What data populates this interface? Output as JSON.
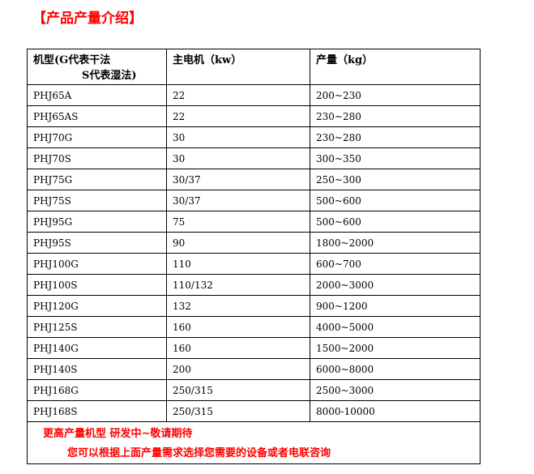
{
  "title": "【产品产量介绍】",
  "headers": {
    "model": "机型(G代表干法",
    "model_sub": "S代表湿法)",
    "power": "主电机（kw）",
    "output": "产量（kg）"
  },
  "rows": [
    [
      "PHJ65A",
      "22",
      "200~230"
    ],
    [
      "PHJ65AS",
      "22",
      "230~280"
    ],
    [
      "PHJ70G",
      "30",
      "230~280"
    ],
    [
      "PHJ70S",
      "30",
      "300~350"
    ],
    [
      "PHJ75G",
      "30/37",
      "250~300"
    ],
    [
      "PHJ75S",
      "30/37",
      "500~600"
    ],
    [
      "PHJ95G",
      "75",
      "500~600"
    ],
    [
      "PHJ95S",
      "90",
      "1800~2000"
    ],
    [
      "PHJ100G",
      "110",
      "600~700"
    ],
    [
      "PHJ100S",
      "110/132",
      "2000~3000"
    ],
    [
      "PHJ120G",
      "132",
      "900~1200"
    ],
    [
      "PHJ125S",
      "160",
      "4000~5000"
    ],
    [
      "PHJ140G",
      "160",
      "1500~2000"
    ],
    [
      "PHJ140S",
      "200",
      "6000~8000"
    ],
    [
      "PHJ168G",
      "250/315",
      "2500~3000"
    ],
    [
      "PHJ168S",
      "250/315",
      "8000-10000"
    ]
  ],
  "footer": {
    "line1": "更高产量机型 研发中~敬请期待",
    "line2": "您可以根据上面产量需求选择您需要的设备或者电联咨询"
  },
  "colors": {
    "accent": "#ff0000"
  }
}
